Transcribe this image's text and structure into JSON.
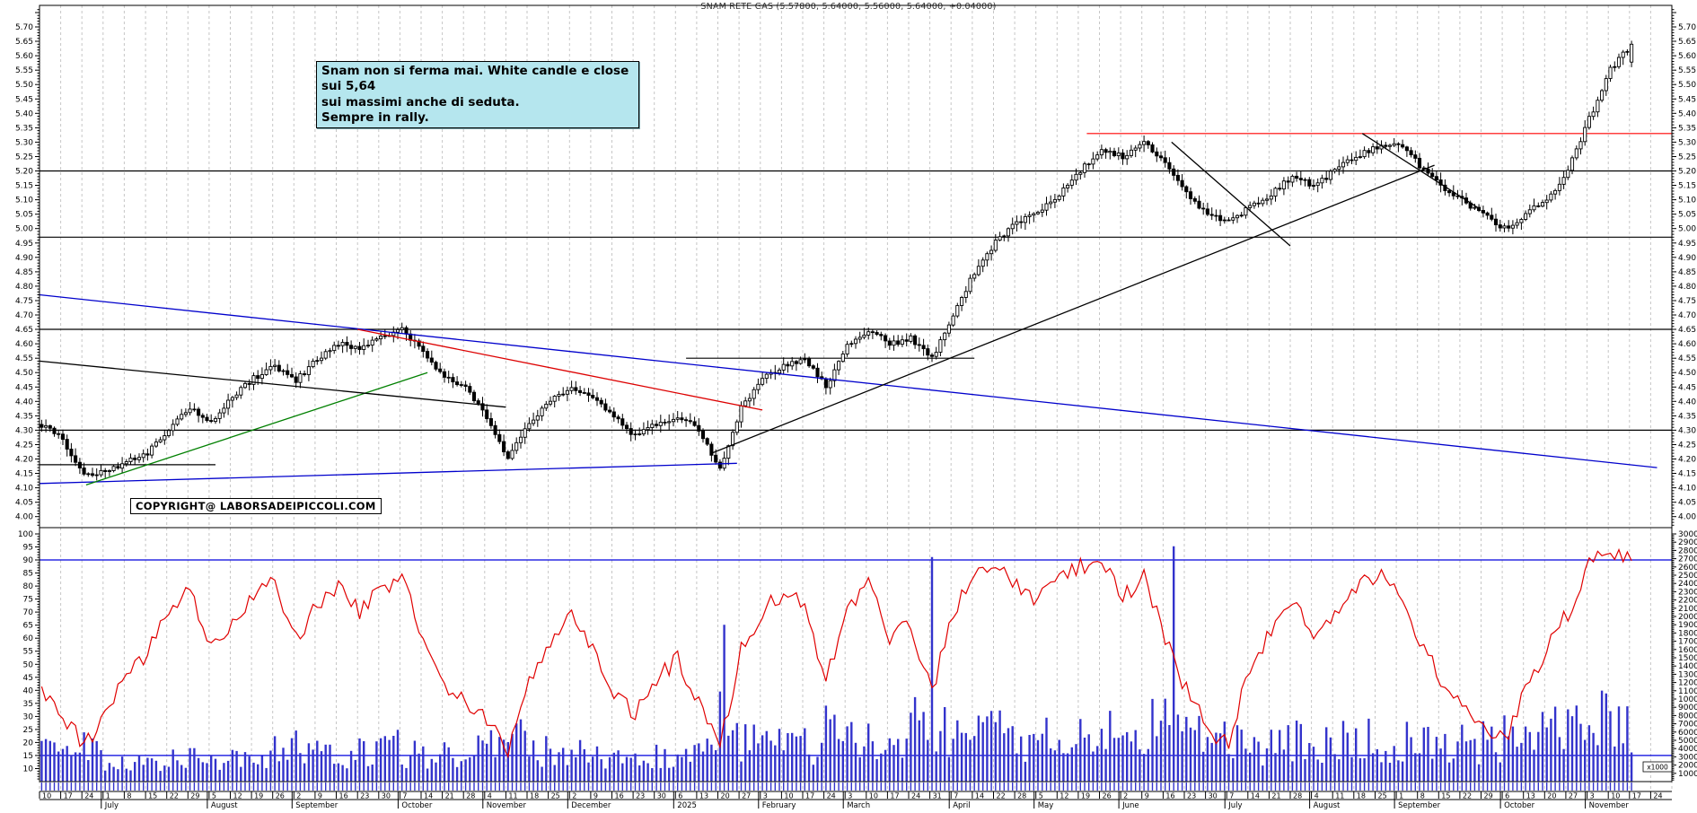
{
  "title": "SNAM RETE GAS (5.57800, 5.64000, 5.56000, 5.64000, +0.04000)",
  "annotation": {
    "line1": "Snam non si ferma mai. White candle e close sui 5,64",
    "line2": "sui massimi anche di seduta.",
    "line3": "Sempre in rally."
  },
  "copyright": "COPYRIGHT@ LABORSADEIPICCOLI.COM",
  "volume_unit_label": "x1000",
  "colors": {
    "candle_up": "#ffffff",
    "candle_down": "#000000",
    "candle_line": "#000000",
    "volume_bar": "#3333cc",
    "oscillator": "#e00000",
    "grid": "#c6c6c6",
    "frame": "#000000",
    "level_red": "#ff0000",
    "level_blue": "#0000dd",
    "trend_blue": "#0000cc",
    "trend_green": "#008000",
    "trend_red": "#dd0000",
    "trend_black": "#000000"
  },
  "chart_data": {
    "type": "candlestick+volume+oscillator",
    "last_bar": {
      "open": 5.578,
      "high": 5.64,
      "low": 5.56,
      "close": 5.64,
      "change": "+0.04000"
    },
    "price_axis": {
      "min": 4.0,
      "max": 5.7,
      "step": 0.05,
      "minor_step": 0.01
    },
    "oscillator_axis": {
      "min": 5,
      "max": 100,
      "step": 5
    },
    "volume_axis": {
      "min": 1000,
      "max": 30000,
      "step": 1000,
      "unit": "x1000"
    },
    "x_axis": {
      "week_day_labels": [
        "10",
        "17",
        "24",
        "1",
        "8",
        "15",
        "22",
        "29",
        "5",
        "12",
        "19",
        "26",
        "2",
        "9",
        "16",
        "23",
        "30",
        "7",
        "14",
        "21",
        "28",
        "4",
        "11",
        "18",
        "25",
        "2",
        "9",
        "16",
        "23",
        "30",
        "6",
        "13",
        "20",
        "27",
        "3",
        "10",
        "17",
        "24",
        "3",
        "10",
        "17",
        "24",
        "31",
        "7",
        "14",
        "22",
        "28",
        "5",
        "12",
        "19",
        "26",
        "2",
        "9",
        "16",
        "23",
        "30",
        "7",
        "14",
        "21",
        "28",
        "4",
        "11",
        "18",
        "25",
        "1",
        "8",
        "15",
        "22",
        "29",
        "6",
        "13",
        "20",
        "27",
        "3",
        "10",
        "17",
        "24"
      ],
      "months": [
        {
          "label": "July",
          "week": 3
        },
        {
          "label": "August",
          "week": 8
        },
        {
          "label": "September",
          "week": 12
        },
        {
          "label": "October",
          "week": 17
        },
        {
          "label": "November",
          "week": 21
        },
        {
          "label": "December",
          "week": 25
        },
        {
          "label": "2025",
          "week": 30
        },
        {
          "label": "February",
          "week": 34
        },
        {
          "label": "March",
          "week": 38
        },
        {
          "label": "April",
          "week": 43
        },
        {
          "label": "May",
          "week": 47
        },
        {
          "label": "June",
          "week": 51
        },
        {
          "label": "July",
          "week": 56
        },
        {
          "label": "August",
          "week": 60
        },
        {
          "label": "September",
          "week": 64
        },
        {
          "label": "October",
          "week": 69
        },
        {
          "label": "November",
          "week": 73
        }
      ]
    },
    "weekly_close_anchors": [
      4.32,
      4.27,
      4.14,
      4.16,
      4.19,
      4.22,
      4.3,
      4.38,
      4.33,
      4.42,
      4.48,
      4.52,
      4.47,
      4.55,
      4.6,
      4.58,
      4.62,
      4.65,
      4.58,
      4.48,
      4.45,
      4.35,
      4.2,
      4.32,
      4.4,
      4.45,
      4.42,
      4.35,
      4.28,
      4.32,
      4.35,
      4.3,
      4.17,
      4.38,
      4.48,
      4.52,
      4.55,
      4.45,
      4.6,
      4.65,
      4.6,
      4.62,
      4.55,
      4.7,
      4.85,
      4.95,
      5.02,
      5.05,
      5.12,
      5.2,
      5.28,
      5.25,
      5.3,
      5.22,
      5.12,
      5.05,
      5.02,
      5.08,
      5.12,
      5.18,
      5.15,
      5.2,
      5.25,
      5.28,
      5.3,
      5.22,
      5.15,
      5.1,
      5.05,
      5.0,
      5.05,
      5.1,
      5.2,
      5.38,
      5.55,
      5.64
    ],
    "weekly_oscillator_anchors": [
      40,
      30,
      19,
      30,
      45,
      55,
      70,
      78,
      55,
      65,
      75,
      82,
      60,
      72,
      80,
      70,
      78,
      85,
      60,
      40,
      35,
      28,
      18,
      45,
      60,
      70,
      55,
      40,
      30,
      45,
      52,
      35,
      18,
      55,
      70,
      78,
      72,
      45,
      70,
      80,
      60,
      65,
      40,
      70,
      85,
      88,
      80,
      75,
      82,
      88,
      90,
      75,
      85,
      60,
      40,
      25,
      20,
      50,
      62,
      75,
      60,
      70,
      80,
      85,
      78,
      60,
      45,
      35,
      25,
      20,
      40,
      55,
      70,
      88,
      93,
      90
    ],
    "weekly_volume_avg": [
      3500,
      3000,
      4000,
      2500,
      2200,
      2000,
      2600,
      3000,
      2800,
      3200,
      3500,
      3800,
      4000,
      3600,
      3300,
      3800,
      4200,
      3500,
      3000,
      3400,
      3800,
      4200,
      5000,
      3800,
      3200,
      3600,
      3000,
      2600,
      2200,
      3000,
      3400,
      4500,
      8000,
      5000,
      5200,
      4800,
      4400,
      6000,
      5000,
      5600,
      5200,
      7000,
      6500,
      6000,
      6500,
      5800,
      5200,
      5400,
      5000,
      5600,
      6000,
      5200,
      6800,
      7500,
      5600,
      5000,
      4600,
      4200,
      4600,
      5000,
      4400,
      4800,
      5200,
      4600,
      5000,
      4600,
      4200,
      4600,
      5000,
      5600,
      6000,
      6500,
      7000,
      7500,
      6500,
      6000
    ],
    "volume_spikes": [
      {
        "week": 32,
        "day": 1,
        "value": 19000
      },
      {
        "week": 42,
        "day": 0,
        "value": 27200
      },
      {
        "week": 53,
        "day": 2,
        "value": 28500
      }
    ],
    "price_hlines": [
      {
        "price": 5.33,
        "color": "level_red",
        "from_week": 49.4,
        "to_week": 77
      },
      {
        "price": 5.2,
        "color": "trend_black",
        "from_week": 0,
        "to_week": 77
      },
      {
        "price": 4.97,
        "color": "trend_black",
        "from_week": 0,
        "to_week": 77
      },
      {
        "price": 4.65,
        "color": "trend_black",
        "from_week": 0,
        "to_week": 77
      },
      {
        "price": 4.3,
        "color": "trend_black",
        "from_week": 0,
        "to_week": 77
      },
      {
        "price": 4.55,
        "color": "trend_black",
        "from_week": 30.5,
        "to_week": 44.1
      },
      {
        "price": 4.18,
        "color": "trend_black",
        "from_week": 0,
        "to_week": 8.3
      }
    ],
    "oscillator_hlines": [
      {
        "value": 90,
        "color": "level_blue"
      },
      {
        "value": 15,
        "color": "level_blue"
      }
    ],
    "trendlines": [
      {
        "w1": -0.2,
        "p1": 4.77,
        "w2": 76.3,
        "p2": 4.17,
        "color": "trend_blue"
      },
      {
        "w1": -0.2,
        "p1": 4.115,
        "w2": 32.9,
        "p2": 4.185,
        "color": "trend_blue"
      },
      {
        "w1": 2.2,
        "p1": 4.11,
        "w2": 18.3,
        "p2": 4.5,
        "color": "trend_green"
      },
      {
        "w1": 15.0,
        "p1": 4.65,
        "w2": 34.1,
        "p2": 4.37,
        "color": "trend_red"
      },
      {
        "w1": -0.2,
        "p1": 4.54,
        "w2": 22.0,
        "p2": 4.38,
        "color": "trend_black"
      },
      {
        "w1": 31.7,
        "p1": 4.22,
        "w2": 65.8,
        "p2": 5.22,
        "color": "trend_black"
      },
      {
        "w1": 53.4,
        "p1": 5.3,
        "w2": 59.0,
        "p2": 4.94,
        "color": "trend_black"
      },
      {
        "w1": 62.4,
        "p1": 5.33,
        "w2": 67.9,
        "p2": 5.07,
        "color": "trend_black"
      }
    ]
  }
}
